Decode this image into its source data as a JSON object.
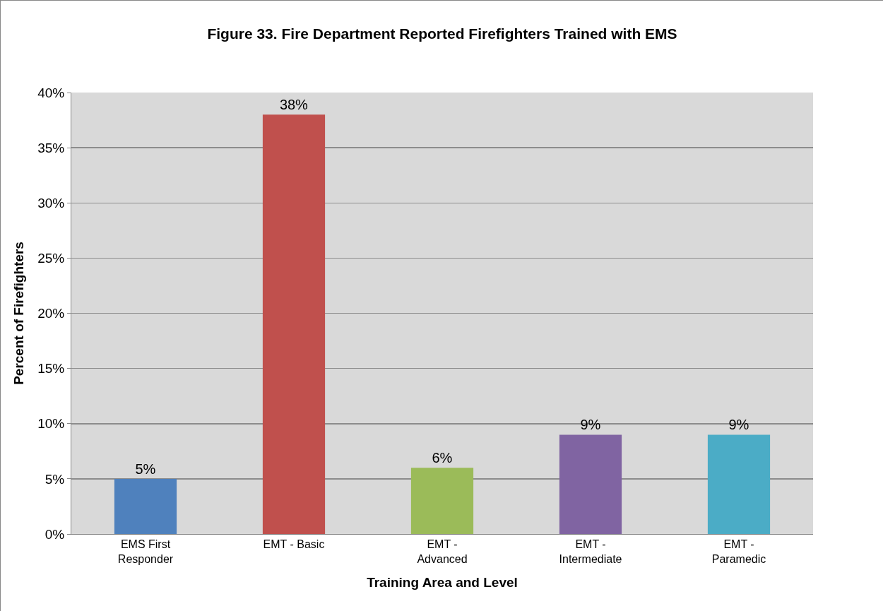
{
  "chart_data": {
    "type": "bar",
    "title": "Figure 33. Fire Department Reported Firefighters Trained with EMS",
    "xlabel": "Training Area and Level",
    "ylabel": "Percent of Firefighters",
    "categories": [
      "EMS First Responder",
      "EMT - Basic",
      "EMT - Advanced",
      "EMT - Intermediate",
      "EMT - Paramedic"
    ],
    "values": [
      5,
      38,
      6,
      9,
      9
    ],
    "colors": [
      "#4f81bd",
      "#c0504d",
      "#9bbb59",
      "#8064a2",
      "#4bacc6"
    ],
    "value_labels": [
      "5%",
      "38%",
      "6%",
      "9%",
      "9%"
    ],
    "ylim": [
      0,
      40
    ],
    "yticks": [
      {
        "value": 0,
        "label": "0%"
      },
      {
        "value": 5,
        "label": "5%"
      },
      {
        "value": 10,
        "label": "10%"
      },
      {
        "value": 15,
        "label": "15%"
      },
      {
        "value": 20,
        "label": "20%"
      },
      {
        "value": 25,
        "label": "25%"
      },
      {
        "value": 30,
        "label": "30%"
      },
      {
        "value": 35,
        "label": "35%"
      },
      {
        "value": 40,
        "label": "40%"
      }
    ],
    "grid": "y"
  }
}
